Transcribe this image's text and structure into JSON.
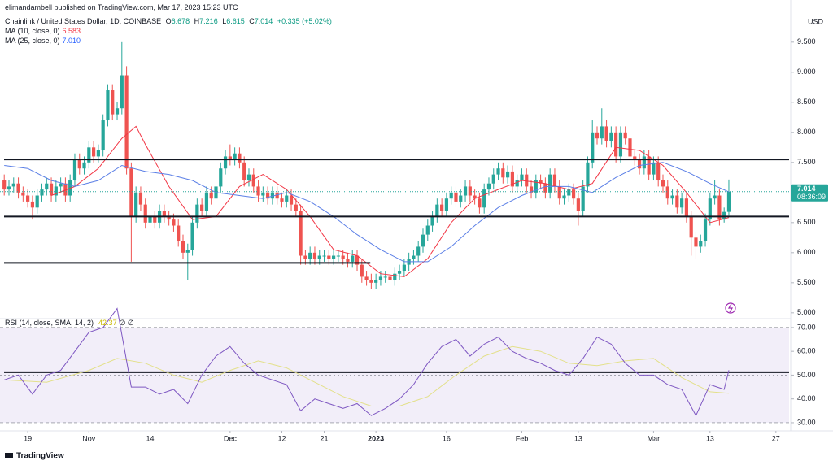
{
  "header": {
    "publisher": "elimandambell published on TradingView.com, Mar 17, 2023 15:23 UTC"
  },
  "footer": {
    "brand": "TradingView"
  },
  "chart_data": [
    {
      "type": "candlestick",
      "title": "Chainlink / United States Dollar, 1D, COINBASE",
      "ohlc_labels": [
        "O",
        "H",
        "L",
        "C"
      ],
      "change": "+0.335 (+5.02%)",
      "axis_label": "USD",
      "countdown": "08:36:09",
      "up_color": "#26a69a",
      "down_color": "#ef5350",
      "open": [
        7.2,
        7.05,
        7.1,
        7.15,
        7.0,
        6.95,
        6.85,
        6.75,
        6.95,
        7.05,
        7.15,
        6.95,
        7.1,
        7.15,
        6.95,
        7.2,
        7.55,
        7.4,
        7.5,
        7.75,
        7.6,
        7.7,
        8.2,
        8.7,
        8.3,
        8.4,
        8.95,
        7.4,
        6.6,
        7.0,
        6.8,
        6.5,
        6.6,
        6.5,
        6.7,
        6.6,
        6.55,
        6.45,
        6.2,
        6.0,
        6.05,
        6.5,
        6.8,
        6.7,
        7.0,
        6.9,
        7.1,
        7.4,
        7.6,
        7.55,
        7.65,
        7.5,
        7.2,
        7.3,
        7.1,
        6.95,
        7.0,
        6.9,
        7.0,
        6.9,
        6.85,
        6.95,
        6.8,
        6.7,
        5.95,
        5.9,
        6.0,
        5.9,
        5.95,
        5.95,
        5.9,
        5.95,
        5.95,
        5.9,
        5.85,
        5.95,
        5.8,
        5.6,
        5.55,
        5.5,
        5.55,
        5.6,
        5.6,
        5.55,
        5.65,
        5.7,
        5.8,
        5.9,
        5.95,
        6.1,
        6.3,
        6.45,
        6.6,
        6.8,
        6.7,
        6.9,
        7.0,
        6.85,
        6.95,
        7.1,
        6.95,
        6.9,
        6.75,
        7.05,
        7.15,
        7.3,
        7.4,
        7.25,
        7.35,
        7.1,
        7.2,
        7.3,
        7.1,
        7.0,
        7.2,
        7.15,
        7.0,
        7.3,
        7.1,
        6.9,
        6.95,
        7.05,
        6.9,
        6.7,
        7.1,
        7.5,
        8.0,
        7.9,
        8.1,
        7.85,
        8.0,
        7.6,
        8.0,
        7.9,
        7.6,
        7.55,
        7.4,
        7.6,
        7.3,
        7.5,
        7.2,
        7.1,
        6.9,
        6.95,
        6.75,
        6.9,
        6.6,
        6.25,
        6.1,
        6.2,
        6.55,
        6.9,
        6.95,
        6.55,
        6.678
      ],
      "high": [
        7.3,
        7.2,
        7.25,
        7.25,
        7.1,
        7.05,
        6.95,
        7.05,
        7.15,
        7.25,
        7.25,
        7.2,
        7.25,
        7.25,
        7.3,
        7.65,
        7.65,
        7.6,
        7.85,
        7.85,
        7.8,
        8.3,
        8.8,
        8.8,
        8.5,
        9.5,
        9.1,
        7.5,
        7.1,
        7.1,
        6.9,
        6.7,
        6.7,
        6.8,
        6.8,
        6.7,
        6.65,
        6.55,
        6.3,
        6.15,
        6.6,
        6.9,
        6.9,
        7.1,
        7.1,
        7.2,
        7.5,
        7.7,
        7.8,
        7.75,
        7.75,
        7.6,
        7.4,
        7.4,
        7.2,
        7.1,
        7.1,
        7.1,
        7.1,
        7.0,
        7.05,
        7.05,
        6.9,
        6.8,
        6.05,
        6.1,
        6.1,
        6.05,
        6.05,
        6.05,
        6.05,
        6.05,
        6.05,
        6.0,
        6.05,
        6.05,
        5.9,
        5.7,
        5.65,
        5.65,
        5.7,
        5.7,
        5.7,
        5.75,
        5.8,
        5.9,
        6.0,
        6.05,
        6.2,
        6.4,
        6.55,
        6.7,
        6.9,
        6.9,
        7.0,
        7.1,
        7.1,
        7.05,
        7.2,
        7.2,
        7.05,
        7.0,
        7.15,
        7.25,
        7.4,
        7.5,
        7.5,
        7.45,
        7.45,
        7.3,
        7.4,
        7.4,
        7.2,
        7.3,
        7.3,
        7.25,
        7.4,
        7.4,
        7.2,
        7.05,
        7.15,
        7.15,
        7.0,
        7.2,
        7.6,
        8.2,
        8.1,
        8.4,
        8.2,
        8.1,
        8.1,
        8.1,
        8.1,
        8.0,
        7.7,
        7.65,
        7.7,
        7.7,
        7.6,
        7.6,
        7.3,
        7.2,
        7.05,
        7.05,
        7.0,
        7.0,
        6.7,
        6.35,
        6.3,
        6.65,
        7.0,
        7.2,
        7.05,
        6.75,
        7.216
      ],
      "low": [
        6.95,
        6.95,
        7.0,
        6.9,
        6.85,
        6.75,
        6.55,
        6.65,
        6.85,
        6.95,
        6.85,
        6.85,
        7.0,
        6.85,
        6.85,
        7.1,
        7.3,
        7.3,
        7.4,
        7.5,
        7.5,
        7.6,
        8.1,
        8.2,
        8.2,
        8.3,
        7.3,
        5.85,
        6.5,
        6.7,
        6.4,
        6.4,
        6.4,
        6.4,
        6.5,
        6.45,
        6.35,
        6.1,
        5.9,
        5.55,
        5.95,
        6.4,
        6.6,
        6.6,
        6.8,
        6.8,
        7.0,
        7.3,
        7.45,
        7.45,
        7.4,
        7.1,
        7.1,
        7.0,
        6.85,
        6.85,
        6.8,
        6.8,
        6.8,
        6.75,
        6.75,
        6.7,
        6.6,
        5.8,
        5.8,
        5.8,
        5.8,
        5.8,
        5.85,
        5.8,
        5.8,
        5.85,
        5.8,
        5.75,
        5.75,
        5.7,
        5.5,
        5.45,
        5.4,
        5.4,
        5.45,
        5.5,
        5.45,
        5.45,
        5.55,
        5.6,
        5.7,
        5.8,
        5.85,
        6.0,
        6.2,
        6.35,
        6.5,
        6.6,
        6.6,
        6.8,
        6.75,
        6.75,
        6.85,
        6.85,
        6.8,
        6.65,
        6.65,
        6.95,
        7.05,
        7.2,
        7.15,
        7.15,
        7.0,
        7.0,
        7.1,
        7.0,
        6.9,
        6.9,
        7.05,
        6.9,
        6.9,
        7.0,
        6.8,
        6.8,
        6.85,
        6.8,
        6.45,
        6.6,
        7.0,
        7.4,
        7.8,
        7.8,
        7.75,
        7.75,
        7.5,
        7.5,
        7.8,
        7.5,
        7.45,
        7.3,
        7.3,
        7.2,
        7.2,
        7.1,
        7.0,
        6.8,
        6.8,
        6.65,
        6.65,
        6.5,
        5.95,
        5.9,
        6.0,
        6.1,
        6.45,
        6.8,
        6.45,
        6.5,
        6.615
      ],
      "close": [
        7.05,
        7.1,
        7.15,
        7.0,
        6.95,
        6.85,
        6.75,
        6.95,
        7.05,
        7.15,
        6.95,
        7.1,
        7.15,
        6.95,
        7.2,
        7.55,
        7.4,
        7.5,
        7.75,
        7.6,
        7.7,
        8.2,
        8.7,
        8.3,
        8.4,
        8.95,
        7.4,
        6.6,
        7.0,
        6.8,
        6.5,
        6.6,
        6.5,
        6.7,
        6.6,
        6.55,
        6.45,
        6.2,
        6.0,
        6.05,
        6.5,
        6.8,
        6.7,
        7.0,
        6.9,
        7.1,
        7.4,
        7.6,
        7.55,
        7.65,
        7.5,
        7.2,
        7.3,
        7.1,
        6.95,
        7.0,
        6.9,
        7.0,
        6.9,
        6.85,
        6.95,
        6.8,
        6.7,
        5.95,
        5.9,
        6.0,
        5.9,
        5.95,
        5.95,
        5.9,
        5.95,
        5.95,
        5.9,
        5.85,
        5.95,
        5.8,
        5.6,
        5.55,
        5.5,
        5.55,
        5.6,
        5.6,
        5.55,
        5.65,
        5.7,
        5.8,
        5.9,
        5.95,
        6.1,
        6.3,
        6.45,
        6.6,
        6.8,
        6.7,
        6.9,
        7.0,
        6.85,
        6.95,
        7.1,
        6.95,
        6.9,
        6.75,
        7.05,
        7.15,
        7.3,
        7.4,
        7.25,
        7.35,
        7.1,
        7.2,
        7.3,
        7.1,
        7.0,
        7.2,
        7.15,
        7.0,
        7.3,
        7.1,
        6.9,
        6.95,
        7.05,
        6.9,
        6.7,
        7.1,
        7.5,
        8.0,
        7.9,
        8.1,
        7.85,
        8.0,
        7.6,
        8.0,
        7.9,
        7.6,
        7.55,
        7.4,
        7.6,
        7.3,
        7.5,
        7.2,
        7.1,
        6.9,
        6.95,
        6.75,
        6.9,
        6.6,
        6.25,
        6.1,
        6.2,
        6.55,
        6.9,
        6.95,
        6.55,
        6.678,
        7.014
      ],
      "xlim": [
        -0.9,
        166.8
      ],
      "xticks": [
        {
          "value": 5,
          "label": "19"
        },
        {
          "value": 18,
          "label": "Nov"
        },
        {
          "value": 31,
          "label": "14"
        },
        {
          "value": 48,
          "label": "Dec"
        },
        {
          "value": 59,
          "label": "12"
        },
        {
          "value": 68,
          "label": "21"
        },
        {
          "value": 79,
          "label": "2023"
        },
        {
          "value": 94,
          "label": "16"
        },
        {
          "value": 110,
          "label": "Feb"
        },
        {
          "value": 122,
          "label": "13"
        },
        {
          "value": 138,
          "label": "Mar"
        },
        {
          "value": 150,
          "label": "13"
        },
        {
          "value": 164,
          "label": "27"
        }
      ],
      "ylim": [
        4.93,
        9.93
      ],
      "yticks": [
        {
          "value": 5,
          "label": "5.000"
        },
        {
          "value": 5.5,
          "label": "5.500"
        },
        {
          "value": 6,
          "label": "6.000"
        },
        {
          "value": 6.5,
          "label": "6.500"
        },
        {
          "value": 7,
          "label": "7.000"
        },
        {
          "value": 7.5,
          "label": "7.500"
        },
        {
          "value": 8,
          "label": "8.000"
        },
        {
          "value": 8.5,
          "label": "8.500"
        },
        {
          "value": 9,
          "label": "9.000"
        },
        {
          "value": 9.5,
          "label": "9.500"
        }
      ],
      "series": [
        {
          "name": "MA (10, close, 0)",
          "color": "#f23645",
          "legend_value": "6.583",
          "x": [
            10,
            15,
            20,
            25,
            28,
            30,
            35,
            40,
            45,
            50,
            55,
            60,
            65,
            70,
            75,
            80,
            85,
            90,
            95,
            100,
            105,
            110,
            115,
            120,
            125,
            130,
            135,
            140,
            145,
            150,
            154
          ],
          "values": [
            6.95,
            7.1,
            7.4,
            7.9,
            8.1,
            7.8,
            7.1,
            6.55,
            6.6,
            7.1,
            7.3,
            7.05,
            6.6,
            6.05,
            5.95,
            5.65,
            5.6,
            5.9,
            6.5,
            6.9,
            7.05,
            7.2,
            7.15,
            7.05,
            7.15,
            7.75,
            7.7,
            7.45,
            7.0,
            6.5,
            6.583
          ]
        },
        {
          "name": "MA (25, close, 0)",
          "color": "#5b7fe6",
          "legend_value": "7.010",
          "x": [
            0,
            5,
            10,
            15,
            20,
            25,
            30,
            35,
            40,
            45,
            50,
            55,
            60,
            65,
            70,
            75,
            80,
            85,
            90,
            95,
            100,
            105,
            110,
            115,
            120,
            125,
            130,
            135,
            140,
            145,
            150,
            154
          ],
          "values": [
            7.45,
            7.4,
            7.2,
            7.1,
            7.2,
            7.45,
            7.35,
            7.3,
            7.2,
            7.0,
            6.95,
            6.9,
            7.0,
            6.85,
            6.6,
            6.3,
            6.05,
            5.85,
            5.85,
            6.1,
            6.45,
            6.75,
            6.95,
            7.1,
            7.1,
            7.0,
            7.25,
            7.45,
            7.5,
            7.35,
            7.15,
            7.01
          ]
        }
      ],
      "levels": [
        {
          "price": 7.55,
          "x_end": 166.8
        },
        {
          "price": 6.6,
          "x_end": 166.8
        },
        {
          "price": 5.83,
          "x_end": 77.8
        }
      ]
    },
    {
      "type": "line",
      "title": "RSI (14, close, SMA, 14, 2)",
      "flags": "∅ ∅",
      "ylim": [
        29.3,
        72.7
      ],
      "yticks": [
        {
          "value": 30,
          "label": "30.00"
        },
        {
          "value": 40,
          "label": "40.00"
        },
        {
          "value": 50,
          "label": "50.00"
        },
        {
          "value": 60,
          "label": "60.00"
        },
        {
          "value": 70,
          "label": "70.00"
        }
      ],
      "band": [
        30,
        70
      ],
      "band_color": "#7e57c2",
      "midline": 50,
      "level": 51.2,
      "series": [
        {
          "color": "#7e57c2",
          "x": [
            0,
            3,
            6,
            9,
            12,
            15,
            18,
            21,
            24,
            27,
            30,
            33,
            36,
            39,
            42,
            45,
            48,
            51,
            54,
            57,
            60,
            63,
            66,
            69,
            72,
            75,
            78,
            81,
            84,
            87,
            90,
            93,
            96,
            99,
            102,
            105,
            108,
            111,
            114,
            117,
            120,
            123,
            126,
            129,
            132,
            135,
            138,
            141,
            144,
            147,
            150,
            153,
            154
          ],
          "values": [
            48,
            50,
            42,
            50,
            52,
            60,
            68,
            70,
            78,
            45,
            45,
            42,
            44,
            38,
            50,
            58,
            62,
            55,
            50,
            48,
            46,
            35,
            40,
            38,
            36,
            38,
            33,
            36,
            40,
            46,
            55,
            62,
            65,
            58,
            63,
            66,
            60,
            57,
            55,
            52,
            50,
            57,
            66,
            63,
            55,
            50,
            50,
            46,
            44,
            33,
            46,
            44,
            52.07
          ]
        },
        {
          "color": "#e3e08a",
          "x": [
            0,
            9,
            18,
            24,
            30,
            36,
            42,
            48,
            54,
            60,
            66,
            72,
            78,
            84,
            90,
            96,
            102,
            108,
            114,
            120,
            126,
            132,
            138,
            144,
            150,
            154
          ],
          "values": [
            48,
            47,
            52,
            57,
            55,
            50,
            47,
            52,
            56,
            53,
            47,
            41,
            37,
            37,
            41,
            50,
            58,
            62,
            60,
            55,
            54,
            56,
            57,
            49,
            43,
            42.37
          ]
        }
      ]
    }
  ]
}
